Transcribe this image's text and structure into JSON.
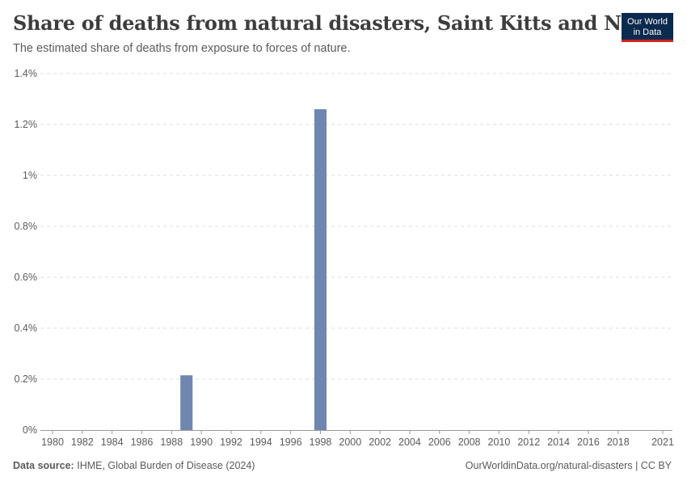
{
  "header": {
    "title": "Share of deaths from natural disasters, Saint Kitts and Nevis",
    "subtitle": "The estimated share of deaths from exposure to forces of nature."
  },
  "logo": {
    "line1": "Our World",
    "line2": "in Data",
    "bg_color": "#0a2a4e",
    "accent_color": "#ce261e"
  },
  "footer": {
    "source_label": "Data source:",
    "source_text": "IHME, Global Burden of Disease (2024)",
    "right_text": "OurWorldinData.org/natural-disasters | CC BY"
  },
  "chart_data": {
    "type": "bar",
    "title": "Share of deaths from natural disasters, Saint Kitts and Nevis",
    "xlabel": "",
    "ylabel": "",
    "x_range": [
      1980,
      2021
    ],
    "x_ticks": [
      "1980",
      "1982",
      "1984",
      "1986",
      "1988",
      "1990",
      "1992",
      "1994",
      "1996",
      "1998",
      "2000",
      "2002",
      "2004",
      "2006",
      "2008",
      "2010",
      "2012",
      "2014",
      "2016",
      "2018",
      "2021"
    ],
    "y_ticks": [
      "0%",
      "0.2%",
      "0.4%",
      "0.6%",
      "0.8%",
      "1%",
      "1.2%",
      "1.4%"
    ],
    "ylim": [
      0,
      1.4
    ],
    "grid": true,
    "bar_color": "#6f87b0",
    "series": [
      {
        "name": "Saint Kitts and Nevis",
        "x": [
          1989,
          1998
        ],
        "values": [
          0.215,
          1.26
        ]
      }
    ]
  }
}
